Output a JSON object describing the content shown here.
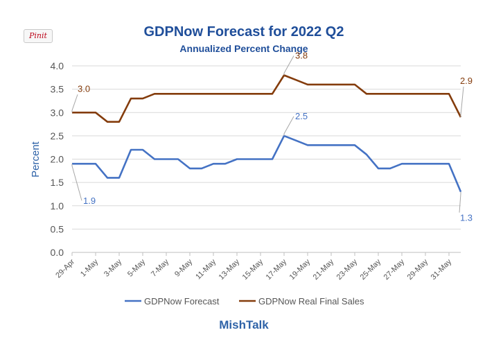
{
  "pin_button": {
    "label": "Pinit"
  },
  "footer": {
    "credit": "MishTalk"
  },
  "chart_data": {
    "type": "line",
    "title": "GDPNow Forecast for 2022 Q2",
    "subtitle": "Annualized Percent Change",
    "xlabel": "",
    "ylabel": "Percent",
    "ylim": [
      0,
      4
    ],
    "yticks": [
      "0.0",
      "0.5",
      "1.0",
      "1.5",
      "2.0",
      "2.5",
      "3.0",
      "3.5",
      "4.0"
    ],
    "x": [
      "29-Apr",
      "30-Apr",
      "1-May",
      "2-May",
      "3-May",
      "4-May",
      "5-May",
      "6-May",
      "7-May",
      "8-May",
      "9-May",
      "10-May",
      "11-May",
      "12-May",
      "13-May",
      "14-May",
      "15-May",
      "16-May",
      "17-May",
      "18-May",
      "19-May",
      "20-May",
      "21-May",
      "22-May",
      "23-May",
      "24-May",
      "25-May",
      "26-May",
      "27-May",
      "28-May",
      "29-May",
      "30-May",
      "31-May",
      "1-Jun"
    ],
    "x_tick_labels": [
      "29-Apr",
      "1-May",
      "3-May",
      "5-May",
      "7-May",
      "9-May",
      "11-May",
      "13-May",
      "15-May",
      "17-May",
      "19-May",
      "21-May",
      "23-May",
      "25-May",
      "27-May",
      "29-May",
      "31-May"
    ],
    "grid": true,
    "legend_position": "bottom",
    "series": [
      {
        "name": "GDPNow Forecast",
        "color": "#4472c4",
        "values": [
          1.9,
          1.9,
          1.9,
          1.6,
          1.6,
          2.2,
          2.2,
          2.0,
          2.0,
          2.0,
          1.8,
          1.8,
          1.9,
          1.9,
          2.0,
          2.0,
          2.0,
          2.0,
          2.5,
          2.4,
          2.3,
          2.3,
          2.3,
          2.3,
          2.3,
          2.1,
          1.8,
          1.8,
          1.9,
          1.9,
          1.9,
          1.9,
          1.9,
          1.3
        ]
      },
      {
        "name": "GDPNow Real Final Sales",
        "color": "#843c0c",
        "values": [
          3.0,
          3.0,
          3.0,
          2.8,
          2.8,
          3.3,
          3.3,
          3.4,
          3.4,
          3.4,
          3.4,
          3.4,
          3.4,
          3.4,
          3.4,
          3.4,
          3.4,
          3.4,
          3.8,
          3.7,
          3.6,
          3.6,
          3.6,
          3.6,
          3.6,
          3.4,
          3.4,
          3.4,
          3.4,
          3.4,
          3.4,
          3.4,
          3.4,
          2.9
        ]
      }
    ],
    "annotations": [
      {
        "series": 1,
        "index": 0,
        "label": "3.0"
      },
      {
        "series": 1,
        "index": 18,
        "label": "3.8"
      },
      {
        "series": 1,
        "index": 33,
        "label": "2.9"
      },
      {
        "series": 0,
        "index": 0,
        "label": "1.9"
      },
      {
        "series": 0,
        "index": 18,
        "label": "2.5"
      },
      {
        "series": 0,
        "index": 33,
        "label": "1.3"
      }
    ]
  }
}
